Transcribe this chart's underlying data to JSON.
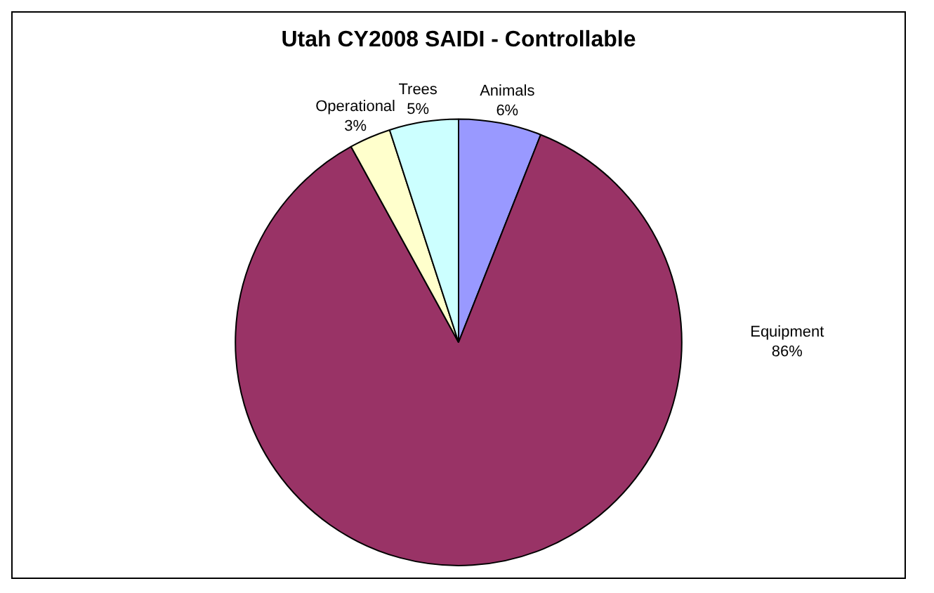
{
  "chart_data": {
    "type": "pie",
    "title": "Utah CY2008 SAIDI - Controllable",
    "categories": [
      "Animals",
      "Equipment",
      "Operational",
      "Trees"
    ],
    "values": [
      6,
      86,
      3,
      5
    ],
    "value_labels": [
      "6%",
      "86%",
      "3%",
      "5%"
    ],
    "colors": [
      "#9999ff",
      "#993366",
      "#ffffcc",
      "#ccffff"
    ],
    "legend": false
  }
}
